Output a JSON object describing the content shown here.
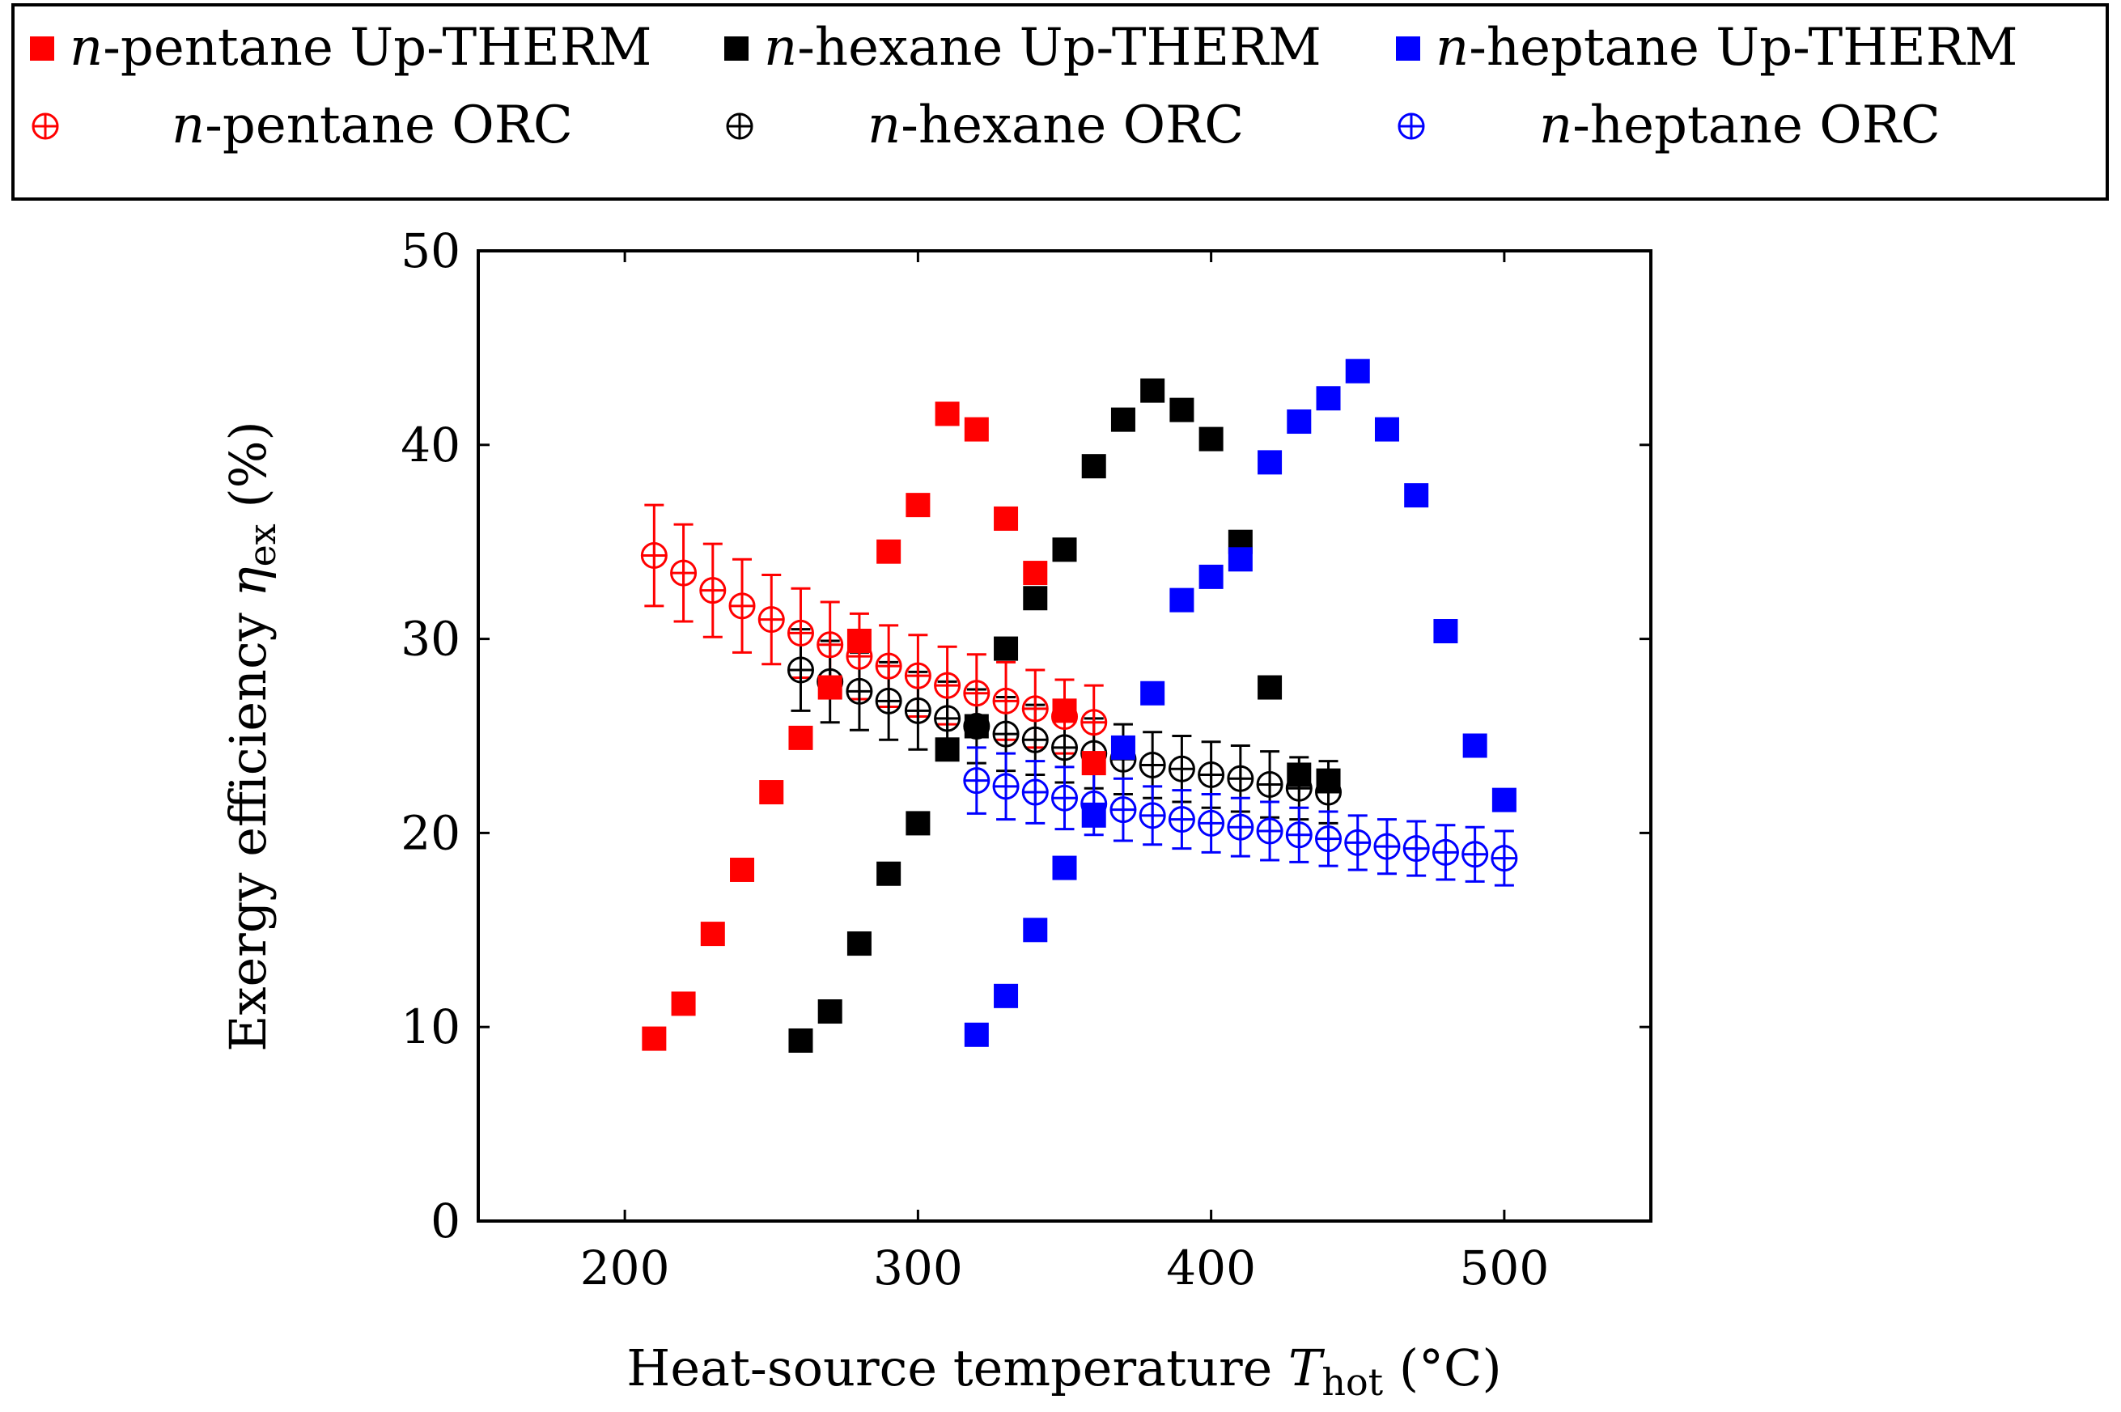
{
  "chart_data": {
    "type": "scatter",
    "title": "",
    "xlabel_main": "Heat-source temperature ",
    "xlabel_var": "T",
    "xlabel_sub": "hot",
    "xlabel_unit": " (°C)",
    "ylabel_main": "Exergy efficiency ",
    "ylabel_var": "η",
    "ylabel_sub": "ex",
    "ylabel_unit": " (%)",
    "xlim": [
      150,
      550
    ],
    "ylim": [
      0,
      50
    ],
    "xticks": [
      200,
      300,
      400,
      500
    ],
    "yticks": [
      0,
      10,
      20,
      30,
      40,
      50
    ],
    "grid": false,
    "legend_position": "top",
    "series": [
      {
        "name": "n-pentane Up-THERM",
        "italic": "n",
        "rest": "-pentane Up-THERM",
        "marker": "square",
        "color": "#ff0000",
        "x": [
          210,
          220,
          230,
          240,
          250,
          260,
          270,
          280,
          290,
          300,
          310,
          320,
          330,
          340,
          350,
          360
        ],
        "y": [
          9.4,
          11.2,
          14.8,
          18.1,
          22.1,
          24.9,
          27.5,
          29.9,
          34.5,
          36.9,
          41.6,
          40.8,
          36.2,
          33.4,
          26.3,
          23.6
        ]
      },
      {
        "name": "n-hexane Up-THERM",
        "italic": "n",
        "rest": "-hexane Up-THERM",
        "marker": "square",
        "color": "#000000",
        "x": [
          260,
          270,
          280,
          290,
          300,
          310,
          320,
          330,
          340,
          350,
          360,
          370,
          380,
          390,
          400,
          410,
          420,
          430,
          440
        ],
        "y": [
          9.3,
          10.8,
          14.3,
          17.9,
          20.5,
          24.3,
          25.5,
          29.5,
          32.1,
          34.6,
          38.9,
          41.3,
          42.8,
          41.8,
          40.3,
          35.0,
          27.5,
          23.0,
          22.7
        ]
      },
      {
        "name": "n-heptane Up-THERM",
        "italic": "n",
        "rest": "-heptane Up-THERM",
        "marker": "square",
        "color": "#0000ff",
        "x": [
          320,
          330,
          340,
          350,
          360,
          370,
          380,
          390,
          400,
          410,
          420,
          430,
          440,
          450,
          460,
          470,
          480,
          490,
          500
        ],
        "y": [
          9.6,
          11.6,
          15.0,
          18.2,
          20.9,
          24.4,
          27.2,
          32.0,
          33.2,
          34.1,
          39.1,
          41.2,
          42.4,
          43.8,
          40.8,
          37.4,
          30.4,
          24.5,
          21.7
        ]
      },
      {
        "name": "n-pentane ORC",
        "italic": "n",
        "rest": "-pentane ORC",
        "marker": "oplus",
        "color": "#ff0000",
        "x": [
          210,
          220,
          230,
          240,
          250,
          260,
          270,
          280,
          290,
          300,
          310,
          320,
          330,
          340,
          350,
          360
        ],
        "y": [
          34.3,
          33.4,
          32.5,
          31.7,
          31.0,
          30.3,
          29.7,
          29.1,
          28.6,
          28.1,
          27.6,
          27.2,
          26.8,
          26.4,
          26.0,
          25.7
        ],
        "err": [
          2.6,
          2.5,
          2.4,
          2.4,
          2.3,
          2.3,
          2.2,
          2.2,
          2.1,
          2.1,
          2.0,
          2.0,
          2.0,
          2.0,
          1.9,
          1.9
        ]
      },
      {
        "name": "n-hexane ORC",
        "italic": "n",
        "rest": "-hexane ORC",
        "marker": "oplus",
        "color": "#000000",
        "x": [
          260,
          270,
          280,
          290,
          300,
          310,
          320,
          330,
          340,
          350,
          360,
          370,
          380,
          390,
          400,
          410,
          420,
          430,
          440
        ],
        "y": [
          28.4,
          27.8,
          27.3,
          26.8,
          26.3,
          25.9,
          25.5,
          25.1,
          24.8,
          24.4,
          24.1,
          23.8,
          23.5,
          23.3,
          23.0,
          22.8,
          22.5,
          22.3,
          22.1
        ],
        "err": [
          2.1,
          2.1,
          2.0,
          2.0,
          2.0,
          1.9,
          1.9,
          1.9,
          1.8,
          1.8,
          1.8,
          1.8,
          1.7,
          1.7,
          1.7,
          1.7,
          1.7,
          1.6,
          1.6
        ]
      },
      {
        "name": "n-heptane ORC",
        "italic": "n",
        "rest": "-heptane ORC",
        "marker": "oplus",
        "color": "#0000ff",
        "x": [
          320,
          330,
          340,
          350,
          360,
          370,
          380,
          390,
          400,
          410,
          420,
          430,
          440,
          450,
          460,
          470,
          480,
          490,
          500
        ],
        "y": [
          22.7,
          22.4,
          22.1,
          21.8,
          21.5,
          21.2,
          20.9,
          20.7,
          20.5,
          20.3,
          20.1,
          19.9,
          19.7,
          19.5,
          19.3,
          19.2,
          19.0,
          18.9,
          18.7
        ],
        "err": [
          1.7,
          1.7,
          1.6,
          1.6,
          1.6,
          1.6,
          1.5,
          1.5,
          1.5,
          1.5,
          1.5,
          1.4,
          1.4,
          1.4,
          1.4,
          1.4,
          1.4,
          1.4,
          1.4
        ]
      }
    ]
  }
}
